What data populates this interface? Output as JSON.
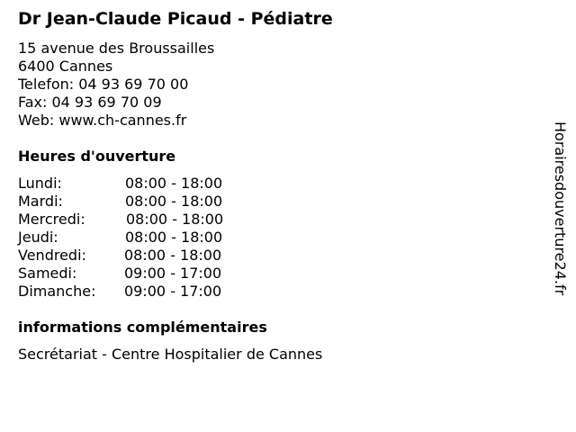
{
  "title": "Dr Jean-Claude Picaud - Pédiatre",
  "address": [
    "15 avenue des Broussailles",
    "6400 Cannes",
    "Telefon: 04 93 69 70 00",
    "Fax: 04 93 69 70 09",
    "Web: www.ch-cannes.fr"
  ],
  "hours_heading": "Heures d'ouverture",
  "hours": [
    {
      "day": "Lundi:",
      "time": "08:00 - 18:00"
    },
    {
      "day": "Mardi:",
      "time": "08:00 - 18:00"
    },
    {
      "day": "Mercredi:",
      "time": "08:00 - 18:00"
    },
    {
      "day": "Jeudi:",
      "time": "08:00 - 18:00"
    },
    {
      "day": "Vendredi:",
      "time": "08:00 - 18:00"
    },
    {
      "day": "Samedi:",
      "time": "09:00 - 17:00"
    },
    {
      "day": "Dimanche:",
      "time": "09:00 - 17:00"
    }
  ],
  "info_heading": "informations complémentaires",
  "info_text": "Secrétariat - Centre Hospitalier de Cannes",
  "watermark": "Horairesdouverture24.fr"
}
